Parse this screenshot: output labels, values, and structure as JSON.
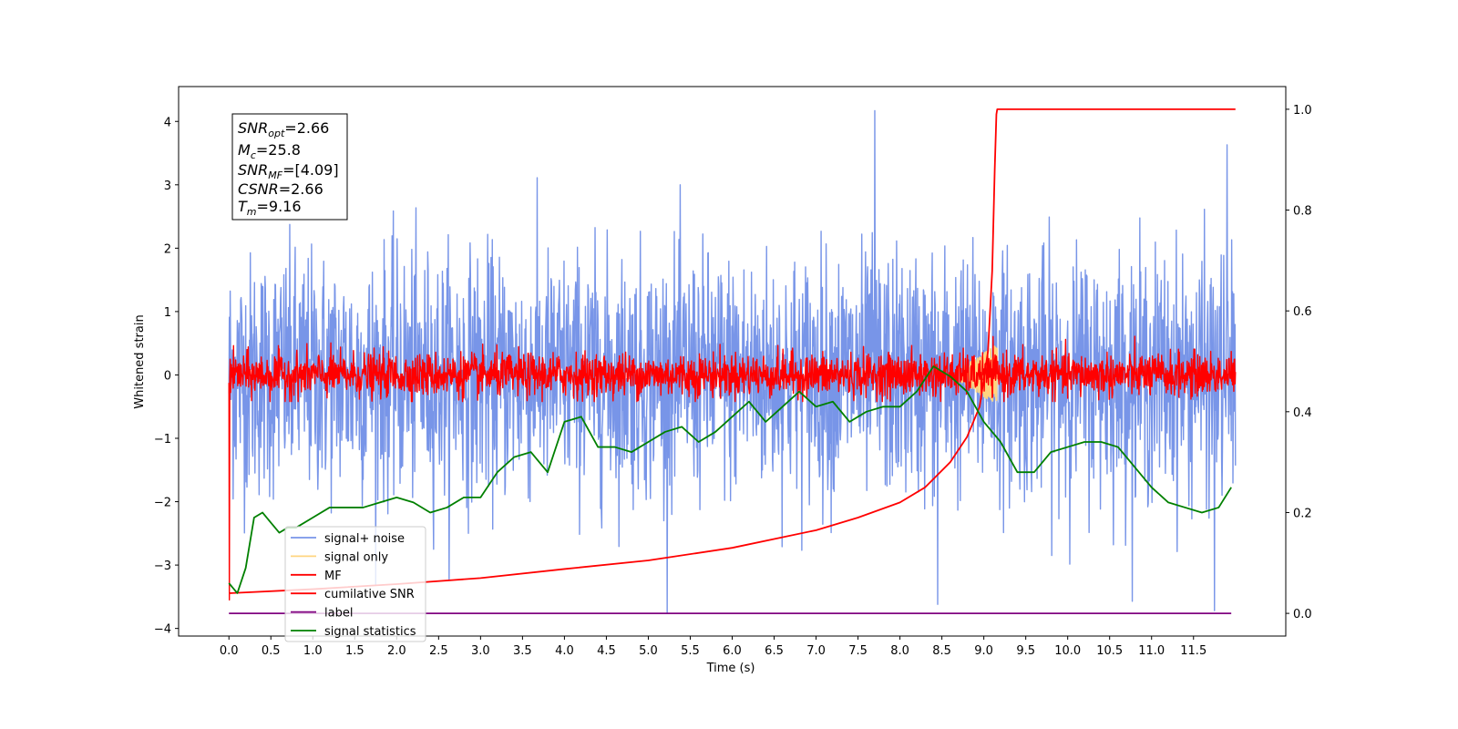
{
  "chart_data": {
    "type": "line",
    "xlabel": "Time (s)",
    "ylabel": "Whitened strain",
    "xlim": [
      -0.6,
      12.6
    ],
    "ylim": [
      -4.12,
      4.55
    ],
    "ylim_right": [
      -0.045,
      1.045
    ],
    "x_ticks": [
      0.0,
      0.5,
      1.0,
      1.5,
      2.0,
      2.5,
      3.0,
      3.5,
      4.0,
      4.5,
      5.0,
      5.5,
      6.0,
      6.5,
      7.0,
      7.5,
      8.0,
      8.5,
      9.0,
      9.5,
      10.0,
      10.5,
      11.0,
      11.5
    ],
    "x_tick_labels": [
      "0.0",
      "0.5",
      "1.0",
      "1.5",
      "2.0",
      "2.5",
      "3.0",
      "3.5",
      "4.0",
      "4.5",
      "5.0",
      "5.5",
      "6.0",
      "6.5",
      "7.0",
      "7.5",
      "8.0",
      "8.5",
      "9.0",
      "9.5",
      "10.0",
      "10.5",
      "11.0",
      "11.5"
    ],
    "y_ticks": [
      4,
      3,
      2,
      1,
      0,
      -1,
      -2,
      -3,
      -4
    ],
    "y_tick_labels": [
      "4",
      "3",
      "2",
      "1",
      "0",
      "−1",
      "−2",
      "−3",
      "−4"
    ],
    "y_right_ticks": [
      1.0,
      0.8,
      0.6,
      0.4,
      0.2,
      0.0
    ],
    "y_right_tick_labels": [
      "1.0",
      "0.8",
      "0.6",
      "0.4",
      "0.2",
      "0.0"
    ],
    "grid": false,
    "legend_position": "lower-left",
    "series": [
      {
        "name": "signal+ noise",
        "color": "#7895e8",
        "axis": "left",
        "kind": "noise",
        "x_range": [
          0.0,
          12.0
        ],
        "std": 0.95,
        "clip": [
          -3.75,
          4.17
        ],
        "peak_max": 4.17,
        "peak_min": -3.72
      },
      {
        "name": "signal only",
        "color": "#ffd580",
        "axis": "left",
        "kind": "chirp",
        "x_range": [
          8.6,
          9.16
        ],
        "min_value": -0.48
      },
      {
        "name": "MF",
        "color": "#ff0000",
        "axis": "left",
        "kind": "noise",
        "x_range": [
          0.0,
          12.0
        ],
        "std": 0.17,
        "clip": [
          -0.42,
          0.62
        ],
        "dip_at": 0.0,
        "dip_value": -3.55
      },
      {
        "name": "cumilative SNR",
        "color": "#ff0000",
        "axis": "right",
        "x": [
          0.0,
          1.0,
          2.0,
          3.0,
          4.0,
          5.0,
          6.0,
          7.0,
          7.5,
          8.0,
          8.3,
          8.6,
          8.8,
          8.95,
          9.05,
          9.1,
          9.13,
          9.15,
          9.16,
          12.0
        ],
        "values": [
          0.04,
          0.048,
          0.058,
          0.07,
          0.088,
          0.105,
          0.13,
          0.165,
          0.19,
          0.22,
          0.25,
          0.3,
          0.35,
          0.41,
          0.52,
          0.68,
          0.88,
          0.99,
          1.0,
          1.0
        ]
      },
      {
        "name": "label",
        "color": "#800080",
        "axis": "right",
        "x": [
          0.0,
          11.95
        ],
        "values": [
          0.0,
          0.0
        ]
      },
      {
        "name": "signal statistics",
        "color": "#008000",
        "axis": "right",
        "x": [
          0.0,
          0.1,
          0.2,
          0.3,
          0.4,
          0.5,
          0.6,
          0.7,
          0.8,
          1.0,
          1.2,
          1.4,
          1.6,
          1.8,
          2.0,
          2.2,
          2.4,
          2.6,
          2.8,
          3.0,
          3.2,
          3.4,
          3.6,
          3.8,
          4.0,
          4.2,
          4.4,
          4.6,
          4.8,
          5.0,
          5.2,
          5.4,
          5.6,
          5.8,
          6.0,
          6.2,
          6.4,
          6.6,
          6.8,
          7.0,
          7.2,
          7.4,
          7.6,
          7.8,
          8.0,
          8.2,
          8.4,
          8.6,
          8.8,
          9.0,
          9.2,
          9.4,
          9.6,
          9.8,
          10.0,
          10.2,
          10.4,
          10.6,
          10.8,
          11.0,
          11.2,
          11.4,
          11.6,
          11.8,
          11.95
        ],
        "values": [
          0.06,
          0.04,
          0.09,
          0.19,
          0.2,
          0.18,
          0.16,
          0.17,
          0.17,
          0.19,
          0.21,
          0.21,
          0.21,
          0.22,
          0.23,
          0.22,
          0.2,
          0.21,
          0.23,
          0.23,
          0.28,
          0.31,
          0.32,
          0.28,
          0.38,
          0.39,
          0.33,
          0.33,
          0.32,
          0.34,
          0.36,
          0.37,
          0.34,
          0.36,
          0.39,
          0.42,
          0.38,
          0.41,
          0.44,
          0.41,
          0.42,
          0.38,
          0.4,
          0.41,
          0.41,
          0.44,
          0.49,
          0.47,
          0.44,
          0.38,
          0.34,
          0.28,
          0.28,
          0.32,
          0.33,
          0.34,
          0.34,
          0.33,
          0.29,
          0.25,
          0.22,
          0.21,
          0.2,
          0.21,
          0.25
        ]
      }
    ]
  },
  "info_box": {
    "snr_opt_base": "SNR",
    "snr_opt_sub": "opt",
    "snr_opt_value": "=2.66",
    "mc_base": "M",
    "mc_sub": "c",
    "mc_value": "=25.8",
    "snr_mf_base": "SNR",
    "snr_mf_sub": "MF",
    "snr_mf_value": "=[4.09]",
    "csnr_base": "CSNR",
    "csnr_value": "=2.66",
    "tm_base": "T",
    "tm_sub": "m",
    "tm_value": "=9.16"
  }
}
